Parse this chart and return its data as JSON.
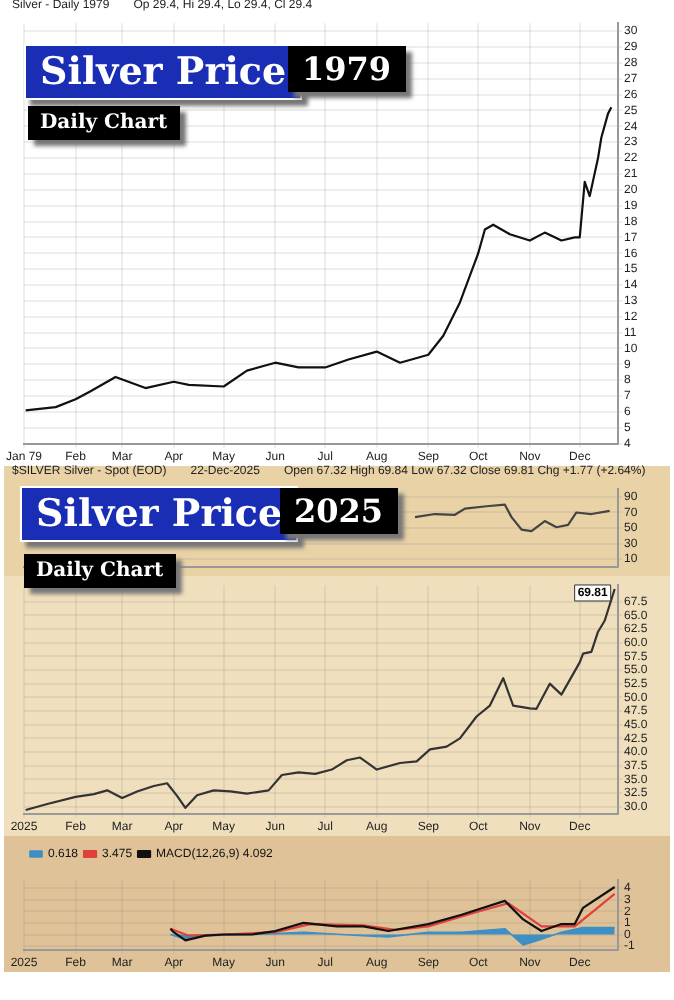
{
  "chart_data": [
    {
      "type": "line",
      "title": "Silver Price",
      "subtitle": "1979",
      "annotations": [
        "Daily Chart",
        "Silver - Daily 1979",
        "Op 29.4, Hi 29.4, Lo 29.4, Cl 29.4"
      ],
      "x": [
        "1979-01-02",
        "1979-01-20",
        "1979-02-01",
        "1979-02-10",
        "1979-02-25",
        "1979-03-15",
        "1979-04-01",
        "1979-04-10",
        "1979-05-01",
        "1979-05-15",
        "1979-06-01",
        "1979-06-15",
        "1979-07-01",
        "1979-07-15",
        "1979-08-01",
        "1979-08-15",
        "1979-09-01",
        "1979-09-10",
        "1979-09-20",
        "1979-10-01",
        "1979-10-05",
        "1979-10-10",
        "1979-10-20",
        "1979-11-01",
        "1979-11-10",
        "1979-11-20",
        "1979-11-28",
        "1979-12-01",
        "1979-12-04",
        "1979-12-07",
        "1979-12-12",
        "1979-12-14",
        "1979-12-18",
        "1979-12-20"
      ],
      "series": [
        {
          "type": "line",
          "color": "#111111",
          "values": [
            6.1,
            6.3,
            6.8,
            7.3,
            8.2,
            7.5,
            7.9,
            7.7,
            7.6,
            8.6,
            9.1,
            8.8,
            8.8,
            9.3,
            9.8,
            9.1,
            9.6,
            10.8,
            12.9,
            16.0,
            17.5,
            17.8,
            17.2,
            16.8,
            17.3,
            16.8,
            17.0,
            17.0,
            20.5,
            19.6,
            22.0,
            23.3,
            24.8,
            25.2
          ]
        }
      ],
      "xlim": [
        "1979-01-01",
        "1979-12-24"
      ],
      "xticks": [
        {
          "value": "1979-01-01",
          "label": "Jan 79"
        },
        {
          "value": "1979-02-01",
          "label": "Feb"
        },
        {
          "value": "1979-03-01",
          "label": "Mar"
        },
        {
          "value": "1979-04-01",
          "label": "Apr"
        },
        {
          "value": "1979-05-01",
          "label": "May"
        },
        {
          "value": "1979-06-01",
          "label": "Jun"
        },
        {
          "value": "1979-07-01",
          "label": "Jul"
        },
        {
          "value": "1979-08-01",
          "label": "Aug"
        },
        {
          "value": "1979-09-01",
          "label": "Sep"
        },
        {
          "value": "1979-10-01",
          "label": "Oct"
        },
        {
          "value": "1979-11-01",
          "label": "Nov"
        },
        {
          "value": "1979-12-01",
          "label": "Dec"
        }
      ],
      "ylim": [
        4,
        30.5
      ],
      "yticks": [
        4,
        5,
        6,
        7,
        8,
        9,
        10,
        11,
        12,
        13,
        14,
        15,
        16,
        17,
        18,
        19,
        20,
        21,
        22,
        23,
        24,
        25,
        26,
        27,
        28,
        29,
        30
      ],
      "grid": true
    },
    {
      "type": "line",
      "title": "Silver Price",
      "subtitle": "2025",
      "annotations": [
        "Daily Chart",
        "$SILVER Silver - Spot (EOD)",
        "22-Dec-2025",
        "Open 67.32 High 69.84 Low 67.32 Close 69.81 Chg +1.77 (+2.64%)"
      ],
      "x": [
        "2025-08-24",
        "2025-09-05",
        "2025-09-17",
        "2025-09-23",
        "2025-10-06",
        "2025-10-17",
        "2025-10-21",
        "2025-10-27",
        "2025-11-02",
        "2025-11-10",
        "2025-11-17",
        "2025-11-24",
        "2025-11-29",
        "2025-12-08",
        "2025-12-19"
      ],
      "series": [
        {
          "type": "line",
          "color": "#444444",
          "values": [
            64,
            68,
            67,
            75,
            78,
            80,
            64,
            48,
            46,
            59,
            51,
            54,
            70,
            68,
            72
          ]
        }
      ],
      "xlim": [
        "2025-01-01",
        "2025-12-24"
      ],
      "ylim": [
        0,
        100
      ],
      "yticks": [
        10,
        30,
        50,
        70,
        90
      ],
      "grid": true,
      "tick_labels": "y"
    },
    {
      "type": "line",
      "x": [
        "2025-01-02",
        "2025-01-15",
        "2025-02-01",
        "2025-02-12",
        "2025-02-20",
        "2025-03-01",
        "2025-03-10",
        "2025-03-20",
        "2025-03-28",
        "2025-04-03",
        "2025-04-08",
        "2025-04-15",
        "2025-04-25",
        "2025-05-05",
        "2025-05-15",
        "2025-05-28",
        "2025-06-05",
        "2025-06-15",
        "2025-06-25",
        "2025-07-05",
        "2025-07-14",
        "2025-07-22",
        "2025-08-01",
        "2025-08-15",
        "2025-08-25",
        "2025-09-02",
        "2025-09-12",
        "2025-09-20",
        "2025-09-30",
        "2025-10-08",
        "2025-10-16",
        "2025-10-22",
        "2025-11-01",
        "2025-11-05",
        "2025-11-13",
        "2025-11-20",
        "2025-12-01",
        "2025-12-03",
        "2025-12-08",
        "2025-12-12",
        "2025-12-16",
        "2025-12-22"
      ],
      "series": [
        {
          "type": "line",
          "color": "#333333",
          "values": [
            29.4,
            30.5,
            31.8,
            32.3,
            33.0,
            31.6,
            32.8,
            33.8,
            34.3,
            32.0,
            29.8,
            32.1,
            33.0,
            32.8,
            32.4,
            33.0,
            35.8,
            36.3,
            36.0,
            36.8,
            38.5,
            39.0,
            36.8,
            38.0,
            38.3,
            40.5,
            41.0,
            42.5,
            46.5,
            48.5,
            53.5,
            48.5,
            48.0,
            47.9,
            52.5,
            50.5,
            56.4,
            58.0,
            58.3,
            62.0,
            64.0,
            69.81
          ],
          "value_labels": [
            null,
            null,
            null,
            null,
            null,
            null,
            null,
            null,
            null,
            null,
            null,
            null,
            null,
            null,
            null,
            null,
            null,
            null,
            null,
            null,
            null,
            null,
            null,
            null,
            null,
            null,
            null,
            null,
            null,
            null,
            null,
            null,
            null,
            null,
            null,
            null,
            null,
            null,
            null,
            null,
            null,
            "69.81"
          ]
        }
      ],
      "xlim": [
        "2025-01-01",
        "2025-12-24"
      ],
      "xticks": [
        {
          "value": "2025-01-01",
          "label": "2025"
        },
        {
          "value": "2025-02-01",
          "label": "Feb"
        },
        {
          "value": "2025-03-01",
          "label": "Mar"
        },
        {
          "value": "2025-04-01",
          "label": "Apr"
        },
        {
          "value": "2025-05-01",
          "label": "May"
        },
        {
          "value": "2025-06-01",
          "label": "Jun"
        },
        {
          "value": "2025-07-01",
          "label": "Jul"
        },
        {
          "value": "2025-08-01",
          "label": "Aug"
        },
        {
          "value": "2025-09-01",
          "label": "Sep"
        },
        {
          "value": "2025-10-01",
          "label": "Oct"
        },
        {
          "value": "2025-11-01",
          "label": "Nov"
        },
        {
          "value": "2025-12-01",
          "label": "Dec"
        }
      ],
      "ylim": [
        28.75,
        70.5
      ],
      "yticks": [
        {
          "value": 30,
          "label": "30.0"
        },
        {
          "value": 32.5,
          "label": "32.5"
        },
        {
          "value": 35,
          "label": "35.0"
        },
        {
          "value": 37.5,
          "label": "37.5"
        },
        {
          "value": 40,
          "label": "40.0"
        },
        {
          "value": 42.5,
          "label": "42.5"
        },
        {
          "value": 45,
          "label": "45.0"
        },
        {
          "value": 47.5,
          "label": "47.5"
        },
        {
          "value": 50,
          "label": "50.0"
        },
        {
          "value": 52.5,
          "label": "52.5"
        },
        {
          "value": 55,
          "label": "55.0"
        },
        {
          "value": 57.5,
          "label": "57.5"
        },
        {
          "value": 60,
          "label": "60.0"
        },
        {
          "value": 62.5,
          "label": "62.5"
        },
        {
          "value": 65,
          "label": "65.0"
        },
        {
          "value": 67.5,
          "label": "67.5"
        }
      ],
      "grid": true
    },
    {
      "type": "line",
      "series": [
        {
          "type": "area",
          "name": "0.618",
          "color": "#3d8fc4",
          "x": [
            "2025-03-30",
            "2025-04-08",
            "2025-04-20",
            "2025-05-18",
            "2025-06-18",
            "2025-07-24",
            "2025-08-08",
            "2025-09-01",
            "2025-09-21",
            "2025-10-17",
            "2025-10-28",
            "2025-11-08",
            "2025-11-20",
            "2025-12-03",
            "2025-12-22"
          ],
          "values": [
            0,
            -0.4,
            -0.1,
            0,
            0.2,
            -0.1,
            -0.2,
            0.2,
            0.2,
            0.5,
            -0.9,
            -0.4,
            0.2,
            0.6,
            0.6
          ]
        },
        {
          "type": "line",
          "name": "3.475",
          "color": "#e0413a",
          "x": [
            "2025-03-30",
            "2025-04-10",
            "2025-05-01",
            "2025-06-01",
            "2025-06-22",
            "2025-07-24",
            "2025-08-12",
            "2025-09-01",
            "2025-09-29",
            "2025-10-19",
            "2025-11-08",
            "2025-11-28",
            "2025-12-22"
          ],
          "values": [
            0.5,
            -0.1,
            0,
            0.2,
            0.9,
            0.8,
            0.4,
            0.7,
            1.9,
            2.7,
            0.7,
            0.7,
            3.5
          ]
        },
        {
          "type": "line",
          "name": "MACD(12,26,9) 4.092",
          "color": "#111111",
          "x": [
            "2025-03-30",
            "2025-04-01",
            "2025-04-08",
            "2025-04-20",
            "2025-05-01",
            "2025-05-18",
            "2025-06-01",
            "2025-06-18",
            "2025-07-08",
            "2025-07-24",
            "2025-08-08",
            "2025-09-01",
            "2025-09-21",
            "2025-10-17",
            "2025-10-28",
            "2025-11-08",
            "2025-11-20",
            "2025-11-28",
            "2025-12-03",
            "2025-12-22"
          ],
          "values": [
            0.5,
            0.2,
            -0.5,
            -0.1,
            0,
            0,
            0.3,
            1.0,
            0.7,
            0.7,
            0.3,
            0.9,
            1.7,
            2.9,
            1.3,
            0.3,
            0.9,
            0.9,
            2.3,
            4.1
          ]
        }
      ],
      "xlim": [
        "2025-01-01",
        "2025-12-24"
      ],
      "xticks": [
        {
          "value": "2025-01-01",
          "label": "2025"
        },
        {
          "value": "2025-02-01",
          "label": "Feb"
        },
        {
          "value": "2025-03-01",
          "label": "Mar"
        },
        {
          "value": "2025-04-01",
          "label": "Apr"
        },
        {
          "value": "2025-05-01",
          "label": "May"
        },
        {
          "value": "2025-06-01",
          "label": "Jun"
        },
        {
          "value": "2025-07-01",
          "label": "Jul"
        },
        {
          "value": "2025-08-01",
          "label": "Aug"
        },
        {
          "value": "2025-09-01",
          "label": "Sep"
        },
        {
          "value": "2025-10-01",
          "label": "Oct"
        },
        {
          "value": "2025-11-01",
          "label": "Nov"
        },
        {
          "value": "2025-12-01",
          "label": "Dec"
        }
      ],
      "ylim": [
        -1.3,
        4.7
      ],
      "yticks": [
        -1,
        0,
        1,
        2,
        3,
        4
      ],
      "grid": true,
      "legend": "top left"
    }
  ]
}
